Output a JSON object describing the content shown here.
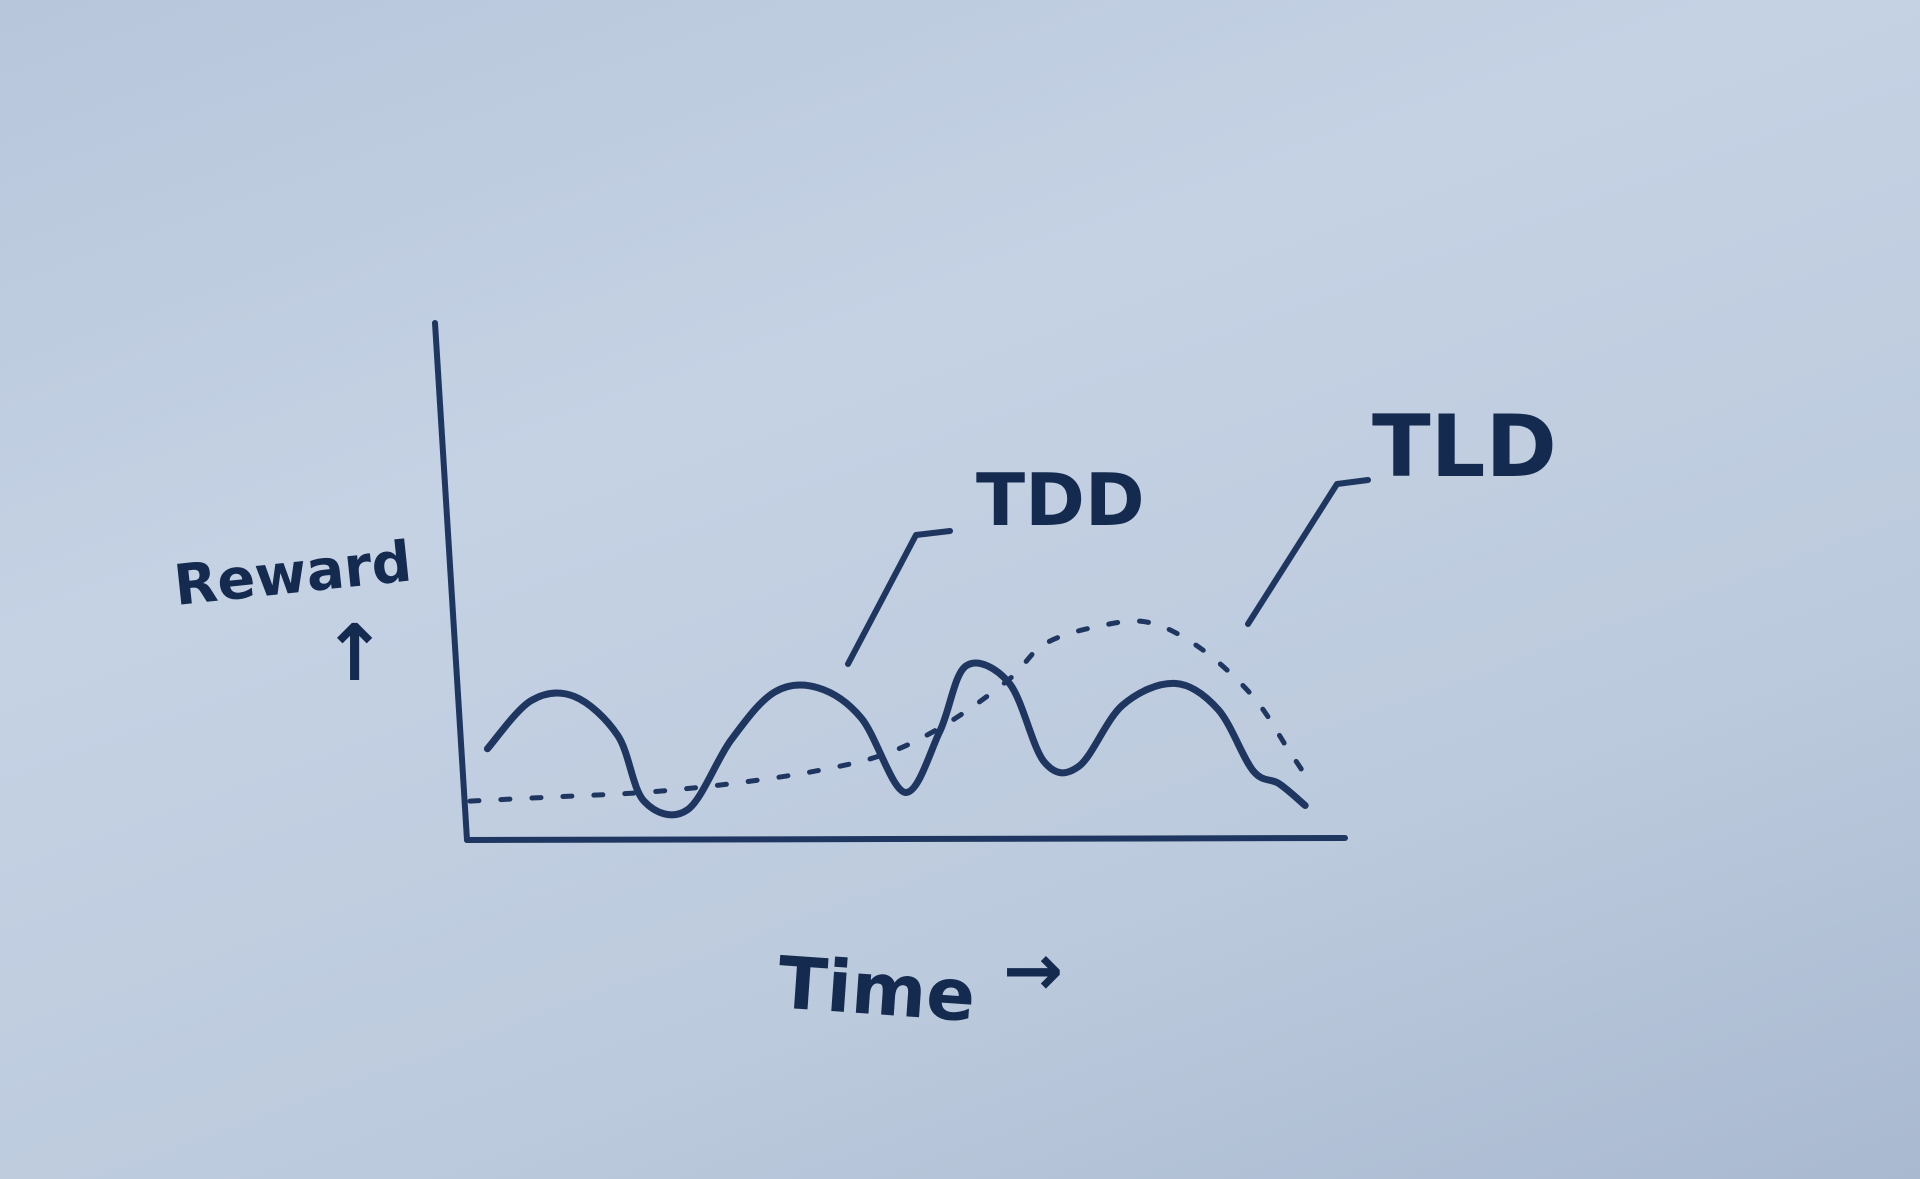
{
  "chart_data": {
    "type": "line",
    "title": "",
    "xlabel": "Time",
    "ylabel": "Reward",
    "x_arrow": "→",
    "y_arrow": "↑",
    "xlim": [
      0,
      100
    ],
    "ylim": [
      0,
      10
    ],
    "grid": false,
    "series": [
      {
        "name": "TDD",
        "style": "solid",
        "x": [
          2,
          7,
          12,
          17,
          20,
          25,
          30,
          35,
          40,
          45,
          50,
          54,
          57,
          62,
          66,
          70,
          75,
          81,
          86,
          90,
          93,
          96
        ],
        "values": [
          2.0,
          3.1,
          3.2,
          2.3,
          0.8,
          0.6,
          2.2,
          3.3,
          3.4,
          2.7,
          1.0,
          2.4,
          3.9,
          3.5,
          1.7,
          1.6,
          3.0,
          3.5,
          2.9,
          1.5,
          1.2,
          0.7
        ]
      },
      {
        "name": "TLD",
        "style": "dotted",
        "x": [
          0,
          10,
          20,
          30,
          40,
          48,
          55,
          62,
          66,
          72,
          78,
          84,
          90,
          94,
          96
        ],
        "values": [
          0.8,
          0.9,
          1.0,
          1.2,
          1.5,
          1.9,
          2.6,
          3.6,
          4.4,
          4.8,
          4.9,
          4.3,
          3.2,
          2.0,
          1.4
        ]
      }
    ],
    "annotations": [
      {
        "text": "TDD",
        "series": "TDD"
      },
      {
        "text": "TLD",
        "series": "TLD"
      }
    ]
  },
  "colors": {
    "ink": "#1f3760",
    "text": "#142a4e"
  }
}
